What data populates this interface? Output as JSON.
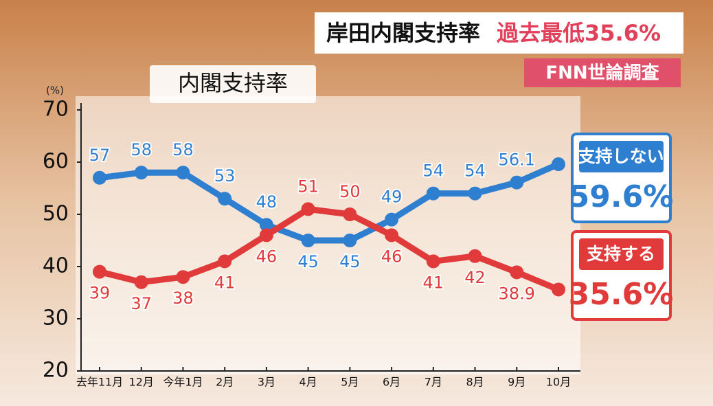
{
  "chart_data": {
    "type": "line",
    "title": "岸田内閣支持率",
    "title_highlight": "過去最低35.6%",
    "source": "FNN世論調査",
    "subtitle": "内閣支持率",
    "y_unit_label": "(%)",
    "categories": [
      "去年11月",
      "12月",
      "今年1月",
      "2月",
      "3月",
      "4月",
      "5月",
      "6月",
      "7月",
      "8月",
      "9月",
      "10月"
    ],
    "series": [
      {
        "name": "支持しない",
        "color": "#2f7fd1",
        "values": [
          57,
          58,
          58,
          53,
          48,
          45,
          45,
          49,
          54,
          54,
          56.1,
          59.6
        ],
        "value_labels": [
          "57",
          "58",
          "58",
          "53",
          "48",
          "45",
          "45",
          "49",
          "54",
          "54",
          "56.1",
          "59.6%"
        ]
      },
      {
        "name": "支持する",
        "color": "#e03a3a",
        "values": [
          39,
          37,
          38,
          41,
          46,
          51,
          50,
          46,
          41,
          42,
          38.9,
          35.6
        ],
        "value_labels": [
          "39",
          "37",
          "38",
          "41",
          "46",
          "51",
          "50",
          "46",
          "41",
          "42",
          "38.9",
          "35.6%"
        ]
      }
    ],
    "ylim": [
      20,
      70
    ],
    "yticks": [
      20,
      30,
      40,
      50,
      60,
      70
    ]
  }
}
